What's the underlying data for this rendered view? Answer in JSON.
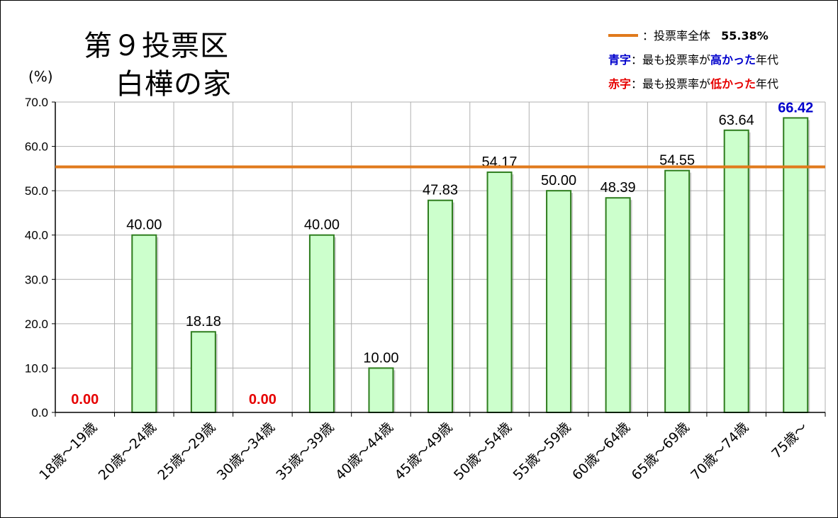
{
  "title_line1": "第９投票区",
  "title_line2": "白樺の家",
  "unit_label": "(%)",
  "legend": {
    "overall_label": "：投票率全体",
    "overall_value": "55.38%",
    "blue_key": "青字",
    "blue_pre": "：最も投票率が",
    "blue_em": "高かった",
    "blue_post": "年代",
    "red_key": "赤字",
    "red_pre": "：最も投票率が",
    "red_em": "低かった",
    "red_post": "年代"
  },
  "colors": {
    "bar_fill": "#ccffcc",
    "bar_stroke": "#2e7d1e",
    "overall_line": "#e07a1c",
    "high": "#0000cc",
    "low": "#e60000",
    "grid": "#b0b0b0"
  },
  "chart_data": {
    "type": "bar",
    "categories": [
      "18歳～19歳",
      "20歳～24歳",
      "25歳～29歳",
      "30歳～34歳",
      "35歳～39歳",
      "40歳～44歳",
      "45歳～49歳",
      "50歳～54歳",
      "55歳～59歳",
      "60歳～64歳",
      "65歳～69歳",
      "70歳～74歳",
      "75歳～"
    ],
    "values": [
      0.0,
      40.0,
      18.18,
      0.0,
      40.0,
      10.0,
      47.83,
      54.17,
      50.0,
      48.39,
      54.55,
      63.64,
      66.42
    ],
    "value_labels": [
      "0.00",
      "40.00",
      "18.18",
      "0.00",
      "40.00",
      "10.00",
      "47.83",
      "54.17",
      "50.00",
      "48.39",
      "54.55",
      "63.64",
      "66.42"
    ],
    "highlight": [
      "low",
      "",
      "",
      "low",
      "",
      "",
      "",
      "",
      "",
      "",
      "",
      "",
      "high"
    ],
    "overall_line_value": 55.38,
    "ylim": [
      0,
      70
    ],
    "yticks": [
      "0.0",
      "10.0",
      "20.0",
      "30.0",
      "40.0",
      "50.0",
      "60.0",
      "70.0"
    ],
    "grid": true,
    "legend_position": "top-right"
  }
}
